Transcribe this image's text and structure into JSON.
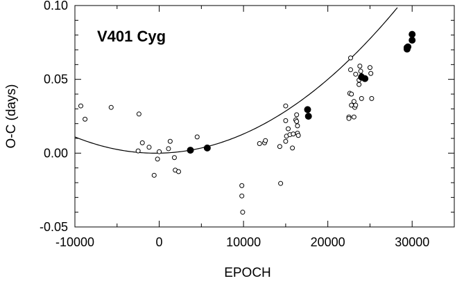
{
  "chart_data": {
    "type": "scatter",
    "title": "V401 Cyg",
    "xlabel": "EPOCH",
    "ylabel": "O-C (days)",
    "xlim": [
      -10000,
      35000
    ],
    "ylim": [
      -0.05,
      0.1
    ],
    "x_ticks": [
      {
        "value": -10000,
        "label": "-10000"
      },
      {
        "value": 0,
        "label": "0"
      },
      {
        "value": 10000,
        "label": "10000"
      },
      {
        "value": 20000,
        "label": "20000"
      },
      {
        "value": 30000,
        "label": "30000"
      }
    ],
    "y_ticks": [
      {
        "value": -0.05,
        "label": "-0.05"
      },
      {
        "value": 0.0,
        "label": "0.00"
      },
      {
        "value": 0.05,
        "label": "0.05"
      },
      {
        "value": 0.1,
        "label": "0.10"
      }
    ],
    "grid": false,
    "series": [
      {
        "marker": "open-circle",
        "color": "#000000",
        "points": [
          [
            -9300,
            0.032
          ],
          [
            -8800,
            0.023
          ],
          [
            -5700,
            0.031
          ],
          [
            -2400,
            0.0265
          ],
          [
            -2500,
            0.0015
          ],
          [
            -2000,
            0.007
          ],
          [
            -1200,
            0.004
          ],
          [
            -600,
            -0.015
          ],
          [
            -200,
            -0.004
          ],
          [
            0,
            0.001
          ],
          [
            1100,
            0.003
          ],
          [
            1300,
            0.008
          ],
          [
            1800,
            -0.003
          ],
          [
            1900,
            -0.0115
          ],
          [
            2300,
            -0.0125
          ],
          [
            4500,
            0.011
          ],
          [
            9800,
            -0.022
          ],
          [
            9800,
            -0.029
          ],
          [
            9900,
            -0.04
          ],
          [
            11900,
            0.0065
          ],
          [
            12500,
            0.007
          ],
          [
            12600,
            0.0085
          ],
          [
            14300,
            0.0045
          ],
          [
            14400,
            -0.0205
          ],
          [
            15000,
            0.032
          ],
          [
            15000,
            0.022
          ],
          [
            15000,
            0.008
          ],
          [
            15100,
            0.0115
          ],
          [
            15300,
            0.0165
          ],
          [
            15500,
            0.0125
          ],
          [
            15800,
            0.0035
          ],
          [
            15900,
            0.013
          ],
          [
            16200,
            0.0225
          ],
          [
            16300,
            0.026
          ],
          [
            16300,
            0.0215
          ],
          [
            16400,
            0.0185
          ],
          [
            16400,
            0.0135
          ],
          [
            16500,
            0.012
          ],
          [
            22500,
            0.0245
          ],
          [
            22500,
            0.0235
          ],
          [
            22600,
            0.0405
          ],
          [
            22700,
            0.0645
          ],
          [
            22700,
            0.0565
          ],
          [
            22800,
            0.0325
          ],
          [
            22800,
            0.04
          ],
          [
            23100,
            0.035
          ],
          [
            23100,
            0.0245
          ],
          [
            23200,
            0.031
          ],
          [
            23300,
            0.0325
          ],
          [
            23300,
            0.0535
          ],
          [
            23700,
            0.0495
          ],
          [
            23700,
            0.0465
          ],
          [
            23800,
            0.059
          ],
          [
            23900,
            0.0555
          ],
          [
            24000,
            0.037
          ],
          [
            24000,
            0.0525
          ],
          [
            25000,
            0.058
          ],
          [
            25100,
            0.054
          ],
          [
            25200,
            0.037
          ]
        ]
      },
      {
        "marker": "filled-circle",
        "color": "#000000",
        "points": [
          [
            3700,
            0.002
          ],
          [
            5700,
            0.0035
          ],
          [
            17600,
            0.0295
          ],
          [
            17700,
            0.025
          ],
          [
            24000,
            0.0515
          ],
          [
            24400,
            0.0505
          ],
          [
            29400,
            0.0705
          ],
          [
            29400,
            0.0715
          ],
          [
            29500,
            0.072
          ],
          [
            30000,
            0.0805
          ],
          [
            30000,
            0.0765
          ]
        ]
      }
    ],
    "fit_curve": {
      "type": "quadratic",
      "coefficients": {
        "a": 0.0,
        "b": 1e-07,
        "c": 1.2e-10
      },
      "color": "#000000"
    }
  }
}
